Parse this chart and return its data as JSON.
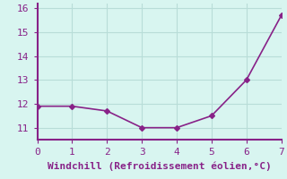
{
  "x": [
    0,
    1,
    2,
    3,
    4,
    5,
    6,
    7
  ],
  "y": [
    11.9,
    11.9,
    11.7,
    11.0,
    11.0,
    11.5,
    13.0,
    15.7
  ],
  "line_color": "#882288",
  "marker": "D",
  "marker_size": 3,
  "line_width": 1.2,
  "xlabel": "Windchill (Refroidissement éolien,°C)",
  "xlabel_color": "#882288",
  "xlim": [
    0,
    7
  ],
  "ylim": [
    10.5,
    16.2
  ],
  "yticks": [
    11,
    12,
    13,
    14,
    15,
    16
  ],
  "xticks": [
    0,
    1,
    2,
    3,
    4,
    5,
    6,
    7
  ],
  "background_color": "#d8f5f0",
  "grid_color": "#b8ddd8",
  "tick_color": "#882288",
  "axis_color": "#882288",
  "font_color": "#882288",
  "font_size": 8,
  "xlabel_size": 8
}
